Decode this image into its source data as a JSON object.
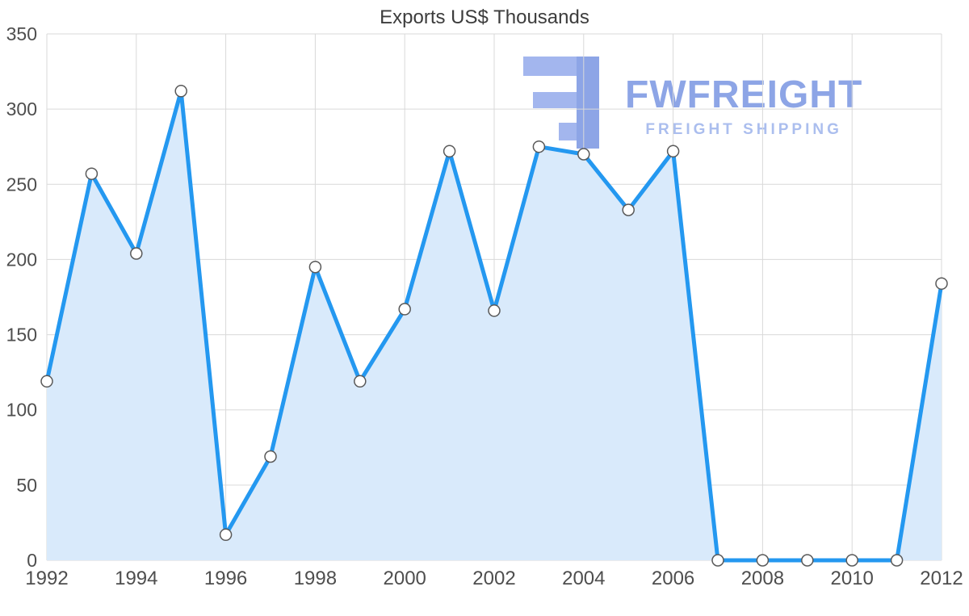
{
  "title": "Exports US$ Thousands",
  "watermark": {
    "brand": "FWFREIGHT",
    "tagline": "FREIGHT SHIPPING",
    "brand_color": "#8da5e6",
    "tagline_color": "#abbeee",
    "logo_color": "#8da5e6",
    "logo_color_light": "#a3b6ee"
  },
  "chart_data": {
    "type": "area",
    "title": "Exports US$ Thousands",
    "xlabel": "",
    "ylabel": "",
    "x": [
      1992,
      1993,
      1994,
      1995,
      1996,
      1997,
      1998,
      1999,
      2000,
      2001,
      2002,
      2003,
      2004,
      2005,
      2006,
      2007,
      2008,
      2009,
      2010,
      2011,
      2012
    ],
    "values": [
      119,
      257,
      204,
      312,
      17,
      69,
      195,
      119,
      167,
      272,
      166,
      275,
      270,
      233,
      272,
      0,
      0,
      0,
      0,
      0,
      184
    ],
    "ylim": [
      0,
      350
    ],
    "y_ticks": [
      0,
      50,
      100,
      150,
      200,
      250,
      300,
      350
    ],
    "x_ticks": [
      1992,
      1994,
      1996,
      1998,
      2000,
      2002,
      2004,
      2006,
      2008,
      2010,
      2012
    ],
    "grid": true,
    "legend": "none",
    "line_color": "#2498f0",
    "fill_color": "#d9eafb",
    "marker_fill": "#ffffff",
    "marker_stroke": "#595959"
  }
}
